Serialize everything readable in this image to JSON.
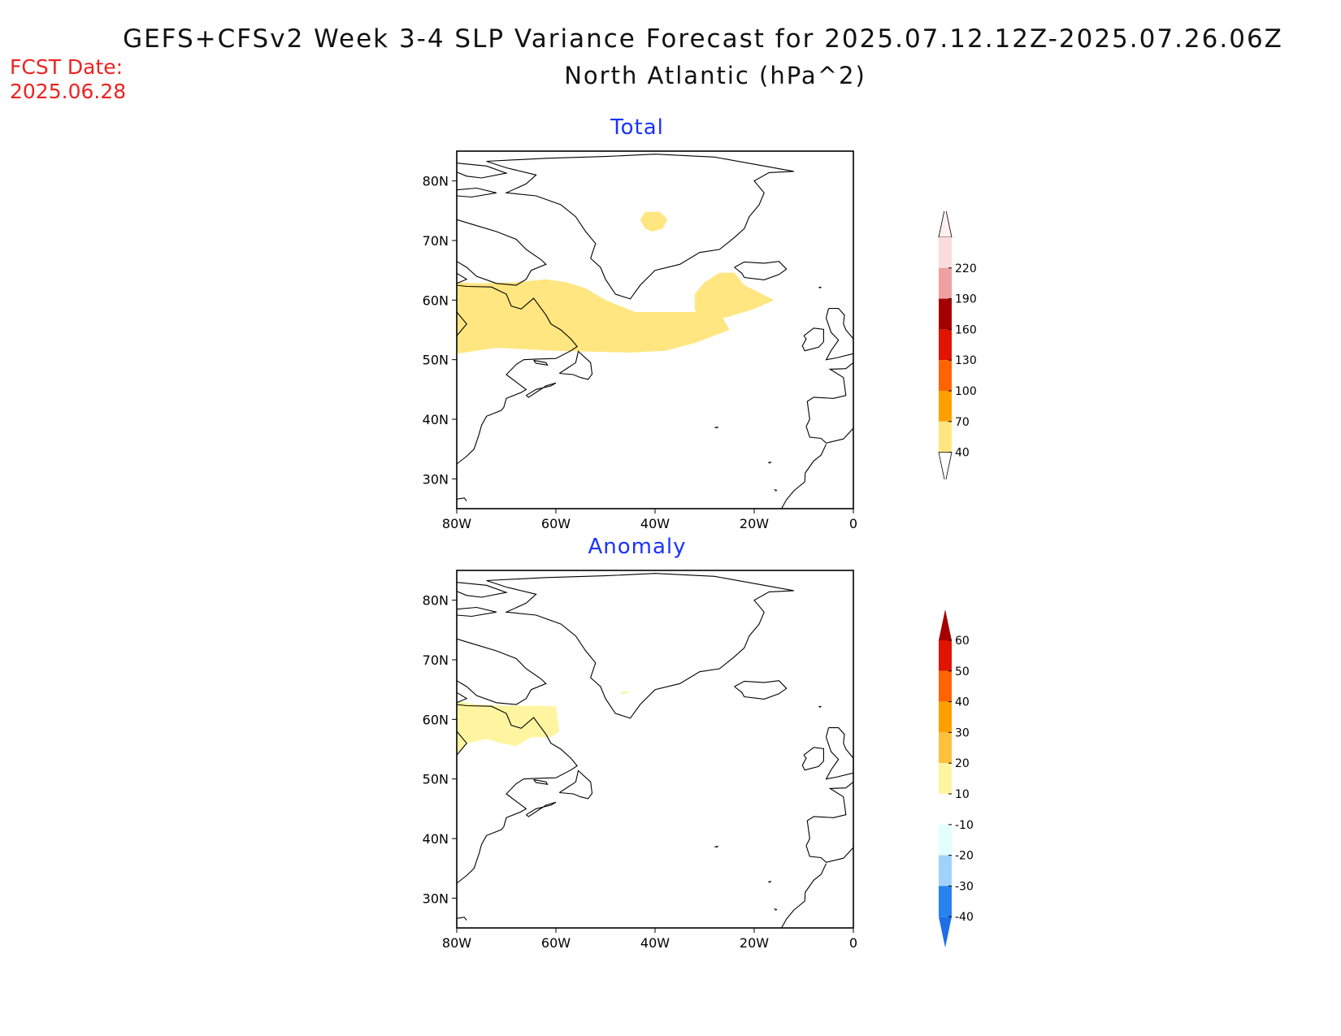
{
  "title": {
    "line1": "GEFS+CFSv2 Week 3-4 SLP Variance Forecast for 2025.07.12.12Z-2025.07.26.06Z",
    "line2": "North Atlantic (hPa^2)"
  },
  "forecast_date": {
    "label": "FCST Date:",
    "value": "2025.06.28"
  },
  "panels": [
    {
      "title": "Total"
    },
    {
      "title": "Anomaly"
    }
  ],
  "axes": {
    "lat_labels": [
      "80N",
      "70N",
      "60N",
      "50N",
      "40N",
      "30N"
    ],
    "lat_values": [
      80,
      70,
      60,
      50,
      40,
      30
    ],
    "lon_labels": [
      "80W",
      "60W",
      "40W",
      "20W",
      "0"
    ],
    "lon_values": [
      -80,
      -60,
      -40,
      -20,
      0
    ],
    "lon_range": [
      -80,
      0
    ],
    "lat_range": [
      25,
      85
    ]
  },
  "colorbars": {
    "total": {
      "levels": [
        "40",
        "70",
        "100",
        "130",
        "160",
        "190",
        "220"
      ],
      "colors": [
        "#ffe680",
        "#ffa000",
        "#ff6400",
        "#e11400",
        "#a50000",
        "#f0a0a0",
        "#fcdcdc"
      ],
      "low_color": "#ffffff",
      "high_color": "#fff0f0"
    },
    "anomaly": {
      "levels": [
        "-40",
        "-30",
        "-20",
        "-10",
        "10",
        "20",
        "30",
        "40",
        "50",
        "60"
      ],
      "colors": [
        "#1e6ee6",
        "#2882f0",
        "#a0d2fa",
        "#e1ffff",
        "#ffffff",
        "#fff5a0",
        "#ffc03c",
        "#ffa000",
        "#ff6400",
        "#e11400",
        "#a50000"
      ]
    }
  },
  "chart_data": [
    {
      "type": "heatmap",
      "title": "Total",
      "units": "hPa^2",
      "regions_above_40": [
        {
          "name": "labrador-atlantic-band",
          "level": "40-70",
          "lon": [
            -80,
            -25
          ],
          "lat": [
            50,
            64
          ]
        },
        {
          "name": "iceland-southwest",
          "level": "40-70",
          "lon": [
            -32,
            -16
          ],
          "lat": [
            56,
            65
          ]
        },
        {
          "name": "greenland-interior",
          "level": "40-70",
          "lon": [
            -44,
            -37
          ],
          "lat": [
            71,
            75
          ]
        }
      ]
    },
    {
      "type": "heatmap",
      "title": "Anomaly",
      "units": "hPa^2",
      "regions_10_to_20": [
        {
          "name": "labrador-hudson",
          "level": "10-20",
          "lon": [
            -80,
            -60
          ],
          "lat": [
            53,
            63
          ]
        },
        {
          "name": "greenland-south-tip",
          "level": "10-20",
          "lon": [
            -47,
            -45
          ],
          "lat": [
            64,
            65
          ]
        }
      ]
    }
  ]
}
